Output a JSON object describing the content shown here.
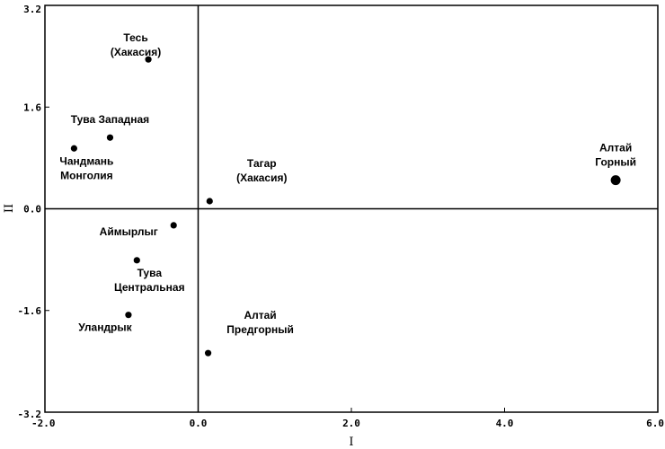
{
  "chart_data": {
    "type": "scatter",
    "title": "",
    "xlabel": "I",
    "ylabel": "II",
    "xlim": [
      -2.0,
      6.0
    ],
    "ylim": [
      -3.2,
      3.2
    ],
    "x_ticks": [
      -2.0,
      0.0,
      2.0,
      4.0,
      6.0
    ],
    "y_ticks": [
      3.2,
      1.6,
      0.0,
      -1.6,
      -3.2
    ],
    "x_tick_labels": [
      "-2.0",
      "0.0",
      "2.0",
      "4.0",
      "6.0"
    ],
    "y_tick_labels": [
      "3.2",
      "1.6",
      "0.0",
      "-1.6",
      "-3.2"
    ],
    "zero_lines": true,
    "grid": false,
    "points": [
      {
        "label": [
          "Тесь",
          "(Хакасия)"
        ],
        "x": -0.65,
        "y": 2.35,
        "label_pos": "upper-left"
      },
      {
        "label": [
          "Тува Западная"
        ],
        "x": -1.15,
        "y": 1.12,
        "label_pos": "above"
      },
      {
        "label": [
          "Чандмань",
          "Монголия"
        ],
        "x": -1.62,
        "y": 0.95,
        "label_pos": "below-right"
      },
      {
        "label": [
          "Алтай",
          "Горный"
        ],
        "x": 5.45,
        "y": 0.45,
        "label_pos": "above",
        "size": "large"
      },
      {
        "label": [
          "Тагар",
          "(Хакасия)"
        ],
        "x": 0.15,
        "y": 0.12,
        "label_pos": "upper-right"
      },
      {
        "label": [
          "Аймырлыг"
        ],
        "x": -0.32,
        "y": -0.26,
        "label_pos": "lower-left"
      },
      {
        "label": [
          "Тува",
          "Центральная"
        ],
        "x": -0.8,
        "y": -0.81,
        "label_pos": "below-right"
      },
      {
        "label": [
          "Уландрык"
        ],
        "x": -0.91,
        "y": -1.67,
        "label_pos": "below-left"
      },
      {
        "label": [
          "Алтай",
          "Предгорный"
        ],
        "x": 0.13,
        "y": -2.27,
        "label_pos": "upper-right"
      }
    ]
  }
}
